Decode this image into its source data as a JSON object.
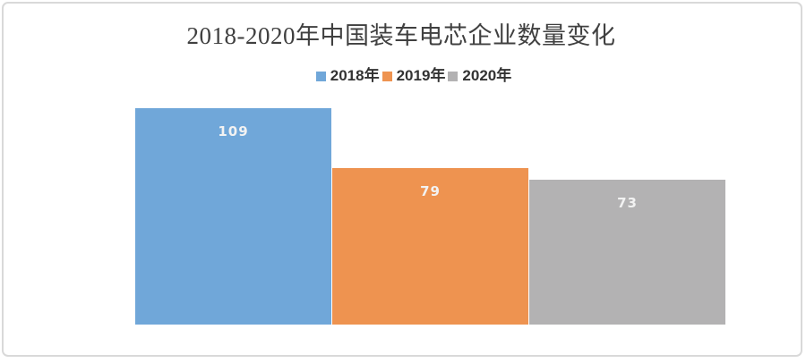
{
  "frame": {
    "border_color": "#d9d9d9",
    "background": "#ffffff"
  },
  "chart_data": {
    "type": "bar",
    "title": "2018-2020年中国装车电芯企业数量变化",
    "series": [
      {
        "name": "2018年",
        "value": 109,
        "color": "#70A7D9"
      },
      {
        "name": "2019年",
        "value": 79,
        "color": "#EE9350"
      },
      {
        "name": "2020年",
        "value": 73,
        "color": "#B3B2B3"
      }
    ],
    "value_labels": [
      "109",
      "79",
      "73"
    ],
    "value_label_color": "#f2f2f2",
    "legend_position": "top-center",
    "legend_entries": [
      "2018年",
      "2019年",
      "2020年"
    ],
    "grid": false,
    "axes_visible": false,
    "xlabel": "",
    "ylabel": "",
    "ylim": [
      0,
      120
    ]
  }
}
